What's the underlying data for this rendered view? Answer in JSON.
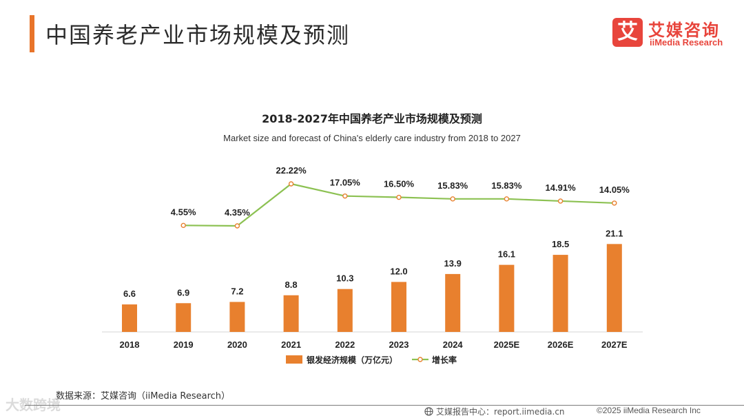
{
  "header": {
    "title": "中国养老产业市场规模及预测"
  },
  "logo": {
    "mark": "艾",
    "name_cn": "艾媒咨询",
    "name_en": "iiMedia Research"
  },
  "chart_data": {
    "type": "bar",
    "title": "2018-2027年中国养老产业市场规模及预测",
    "subtitle": "Market size and forecast of China's elderly care industry from 2018 to 2027",
    "categories": [
      "2018",
      "2019",
      "2020",
      "2021",
      "2022",
      "2023",
      "2024",
      "2025E",
      "2026E",
      "2027E"
    ],
    "series": [
      {
        "name": "银发经济规模（万亿元）",
        "type": "bar",
        "values": [
          6.6,
          6.9,
          7.2,
          8.8,
          10.3,
          12.0,
          13.9,
          16.1,
          18.5,
          21.1
        ],
        "labels": [
          "6.6",
          "6.9",
          "7.2",
          "8.8",
          "10.3",
          "12.0",
          "13.9",
          "16.1",
          "18.5",
          "21.1"
        ]
      },
      {
        "name": "增长率",
        "type": "line",
        "values": [
          null,
          4.55,
          4.35,
          22.22,
          17.05,
          16.5,
          15.83,
          15.83,
          14.91,
          14.05
        ],
        "labels": [
          null,
          "4.55%",
          "4.35%",
          "22.22%",
          "17.05%",
          "16.50%",
          "15.83%",
          "15.83%",
          "14.91%",
          "14.05%"
        ]
      }
    ],
    "colors": {
      "bar": "#e8802e",
      "line": "#8cc152",
      "marker_edge": "#e8802e",
      "marker_fill": "#ffffff"
    },
    "legend_position": "bottom-center",
    "grid": false
  },
  "footer": {
    "source": "数据来源：艾媒咨询（iiMedia Research）",
    "report_center": "艾媒报告中心：report.iimedia.cn",
    "copyright": "©2025  iiMedia Research  Inc"
  },
  "watermark": {
    "text": "大数跨境"
  }
}
